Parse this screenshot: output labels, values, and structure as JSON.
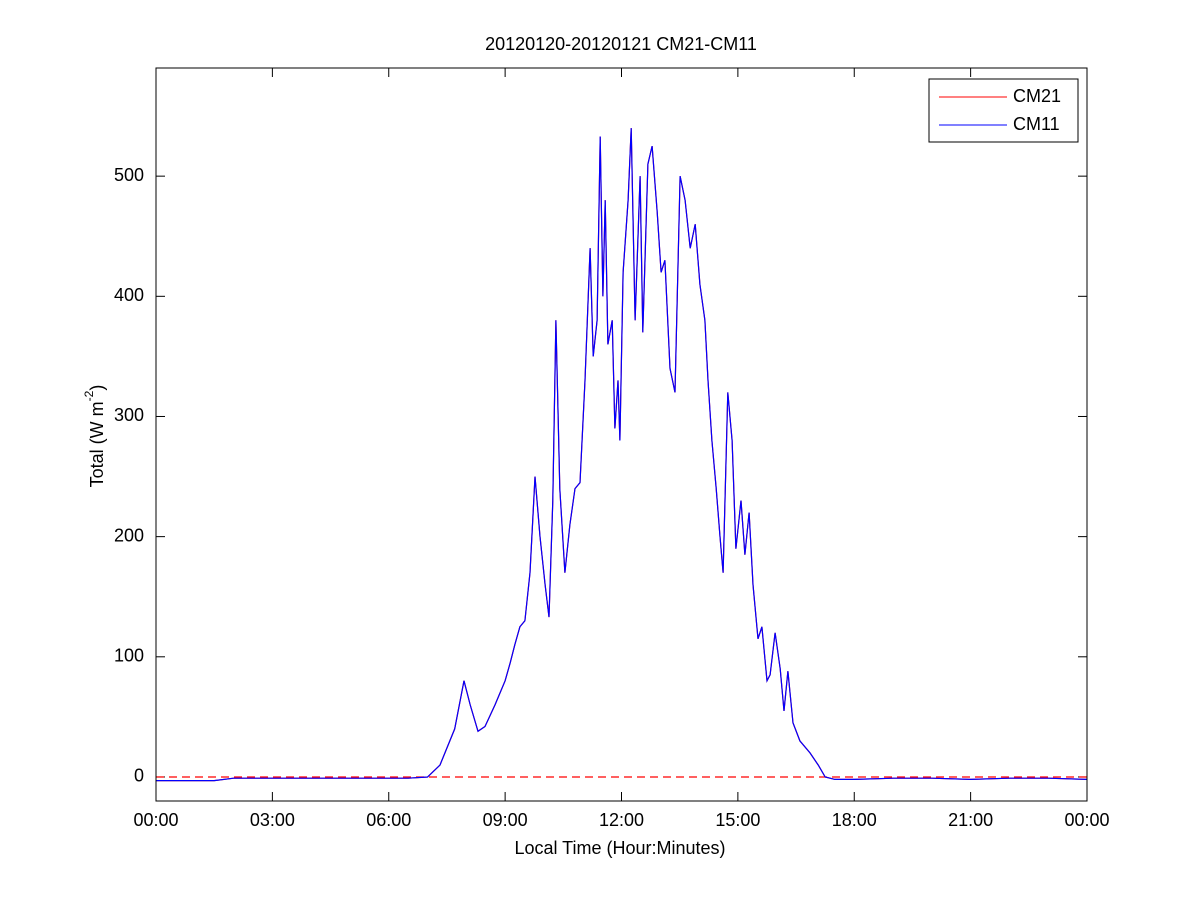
{
  "chart_data": {
    "type": "line",
    "title": "20120120-20120121 CM21-CM11",
    "xlabel": "Local Time (Hour:Minutes)",
    "ylabel": [
      "Total (W m",
      "-2",
      ")"
    ],
    "x": [
      0,
      0.5,
      1,
      1.5,
      2,
      3,
      4,
      5,
      6,
      6.5,
      7.0,
      7.32,
      7.7,
      7.94,
      8.1,
      8.3,
      8.48,
      8.74,
      9.0,
      9.13,
      9.25,
      9.38,
      9.51,
      9.64,
      9.77,
      9.9,
      10.03,
      10.13,
      10.23,
      10.31,
      10.41,
      10.54,
      10.67,
      10.8,
      10.93,
      11.06,
      11.19,
      11.27,
      11.37,
      11.45,
      11.52,
      11.58,
      11.65,
      11.76,
      11.83,
      11.91,
      11.96,
      12.04,
      12.17,
      12.25,
      12.35,
      12.48,
      12.55,
      12.68,
      12.79,
      12.92,
      13.02,
      13.12,
      13.25,
      13.38,
      13.51,
      13.64,
      13.77,
      13.9,
      14.02,
      14.15,
      14.23,
      14.33,
      14.44,
      14.54,
      14.62,
      14.74,
      14.85,
      14.95,
      15.08,
      15.18,
      15.29,
      15.39,
      15.52,
      15.62,
      15.75,
      15.83,
      15.96,
      16.09,
      16.19,
      16.29,
      16.42,
      16.6,
      16.86,
      17.07,
      17.25,
      17.5,
      18,
      19,
      20,
      21,
      22,
      23,
      24
    ],
    "series": [
      {
        "name": "CM21",
        "color": "#ff0000",
        "values": [
          -3,
          -3,
          -3,
          -3,
          -1,
          -1,
          -1,
          -1,
          -1,
          -1,
          0,
          10,
          40,
          80,
          60,
          38,
          42,
          60,
          80,
          95,
          110,
          125,
          130,
          170,
          250,
          200,
          160,
          133,
          230,
          380,
          240,
          170,
          210,
          240,
          245,
          330,
          440,
          350,
          380,
          533,
          400,
          480,
          360,
          380,
          290,
          330,
          280,
          420,
          480,
          540,
          380,
          500,
          370,
          510,
          525,
          470,
          420,
          430,
          340,
          320,
          500,
          480,
          440,
          460,
          410,
          380,
          330,
          280,
          240,
          200,
          170,
          320,
          280,
          190,
          230,
          185,
          220,
          160,
          115,
          125,
          80,
          85,
          120,
          90,
          55,
          88,
          45,
          30,
          20,
          10,
          0,
          -2,
          -2,
          -1,
          -1,
          -2,
          -1,
          -1,
          -2
        ]
      },
      {
        "name": "CM11",
        "color": "#0000ff",
        "values": [
          -3,
          -3,
          -3,
          -3,
          -1,
          -1,
          -1,
          -1,
          -1,
          -1,
          0,
          10,
          40,
          80,
          60,
          38,
          42,
          60,
          80,
          95,
          110,
          125,
          130,
          170,
          250,
          200,
          160,
          133,
          230,
          380,
          240,
          170,
          210,
          240,
          245,
          330,
          440,
          350,
          380,
          533,
          400,
          480,
          360,
          380,
          290,
          330,
          280,
          420,
          480,
          540,
          380,
          500,
          370,
          510,
          525,
          470,
          420,
          430,
          340,
          320,
          500,
          480,
          440,
          460,
          410,
          380,
          330,
          280,
          240,
          200,
          170,
          320,
          280,
          190,
          230,
          185,
          220,
          160,
          115,
          125,
          80,
          85,
          120,
          90,
          55,
          88,
          45,
          30,
          20,
          10,
          0,
          -2,
          -2,
          -1,
          -1,
          -2,
          -1,
          -1,
          -2
        ]
      }
    ],
    "zero_line": {
      "value": 0,
      "color": "#ff0000"
    },
    "xlim": [
      0,
      24
    ],
    "xticks": [
      {
        "value": 0,
        "label": "00:00"
      },
      {
        "value": 3,
        "label": "03:00"
      },
      {
        "value": 6,
        "label": "06:00"
      },
      {
        "value": 9,
        "label": "09:00"
      },
      {
        "value": 12,
        "label": "12:00"
      },
      {
        "value": 15,
        "label": "15:00"
      },
      {
        "value": 18,
        "label": "18:00"
      },
      {
        "value": 21,
        "label": "21:00"
      },
      {
        "value": 24,
        "label": "00:00"
      }
    ],
    "ylim": [
      -20,
      590
    ],
    "yticks": [
      0,
      100,
      200,
      300,
      400,
      500
    ],
    "legend": "upper right"
  }
}
